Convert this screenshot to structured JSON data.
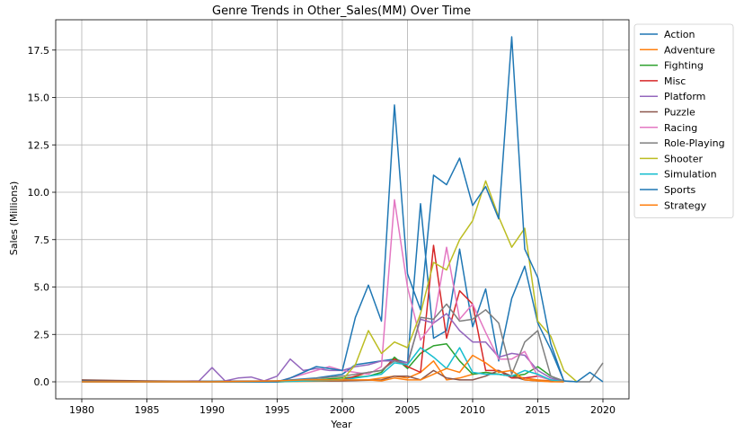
{
  "chart_data": {
    "type": "line",
    "title": "Genre Trends in Other_Sales(MM) Over Time",
    "xlabel": "Year",
    "ylabel": "Sales (Millions)",
    "xlim": [
      1978,
      2022
    ],
    "ylim": [
      -0.9,
      19.1
    ],
    "x_ticks": [
      1980,
      1985,
      1990,
      1995,
      2000,
      2005,
      2010,
      2015,
      2020
    ],
    "y_ticks": [
      0.0,
      2.5,
      5.0,
      7.5,
      10.0,
      12.5,
      15.0,
      17.5
    ],
    "y_tick_labels": [
      "0.0",
      "2.5",
      "5.0",
      "7.5",
      "10.0",
      "12.5",
      "15.0",
      "17.5"
    ],
    "grid": true,
    "legend_position": "outside-right",
    "series": [
      {
        "name": "Action",
        "color": "#1f77b4",
        "x": [
          1980,
          1985,
          1990,
          1995,
          1998,
          2000,
          2001,
          2002,
          2003,
          2004,
          2005,
          2006,
          2007,
          2008,
          2009,
          2010,
          2011,
          2012,
          2013,
          2014,
          2015,
          2016,
          2017
        ],
        "y": [
          0.05,
          0.02,
          0.03,
          0.05,
          0.2,
          0.4,
          0.9,
          1.0,
          1.1,
          1.2,
          1.0,
          9.4,
          2.3,
          2.7,
          7.0,
          2.9,
          4.9,
          1.1,
          4.4,
          6.1,
          3.1,
          1.7,
          0.05
        ]
      },
      {
        "name": "Adventure",
        "color": "#ff7f0e",
        "x": [
          1980,
          1985,
          1990,
          1995,
          2000,
          2002,
          2003,
          2004,
          2005,
          2006,
          2007,
          2008,
          2009,
          2010,
          2011,
          2012,
          2013,
          2014,
          2015,
          2016,
          2017
        ],
        "y": [
          0.0,
          0.0,
          0.0,
          0.0,
          0.05,
          0.1,
          0.2,
          0.3,
          0.2,
          0.5,
          1.1,
          0.1,
          0.2,
          0.4,
          0.5,
          0.4,
          0.3,
          0.2,
          0.1,
          0.05,
          0.0
        ]
      },
      {
        "name": "Fighting",
        "color": "#2ca02c",
        "x": [
          1980,
          1985,
          1990,
          1995,
          1998,
          2000,
          2002,
          2003,
          2004,
          2005,
          2006,
          2007,
          2008,
          2009,
          2010,
          2011,
          2012,
          2013,
          2014,
          2015,
          2016,
          2017
        ],
        "y": [
          0.0,
          0.0,
          0.0,
          0.0,
          0.1,
          0.2,
          0.3,
          0.5,
          1.3,
          0.7,
          1.5,
          1.9,
          2.0,
          1.1,
          0.4,
          0.5,
          0.4,
          0.3,
          0.4,
          0.8,
          0.3,
          0.0
        ]
      },
      {
        "name": "Misc",
        "color": "#d62728",
        "x": [
          1980,
          1985,
          1990,
          1995,
          2000,
          2001,
          2002,
          2003,
          2004,
          2005,
          2006,
          2007,
          2008,
          2009,
          2010,
          2011,
          2012,
          2013,
          2014,
          2015,
          2016,
          2017
        ],
        "y": [
          0.0,
          0.0,
          0.0,
          0.0,
          0.1,
          0.3,
          0.5,
          0.6,
          1.2,
          0.8,
          0.5,
          7.2,
          2.3,
          4.8,
          4.1,
          0.6,
          0.6,
          0.2,
          0.2,
          0.3,
          0.1,
          0.0
        ]
      },
      {
        "name": "Platform",
        "color": "#9467bd",
        "x": [
          1980,
          1985,
          1989,
          1990,
          1991,
          1992,
          1993,
          1994,
          1995,
          1996,
          1997,
          1998,
          1999,
          2000,
          2001,
          2002,
          2003,
          2004,
          2005,
          2006,
          2007,
          2008,
          2009,
          2010,
          2011,
          2012,
          2013,
          2014,
          2015,
          2016,
          2017
        ],
        "y": [
          0.0,
          0.0,
          0.05,
          0.75,
          0.05,
          0.2,
          0.25,
          0.05,
          0.3,
          1.2,
          0.6,
          0.7,
          0.6,
          0.6,
          0.8,
          0.9,
          1.1,
          1.1,
          1.0,
          3.3,
          3.1,
          3.6,
          2.7,
          2.1,
          2.1,
          1.3,
          1.5,
          1.4,
          0.6,
          0.2,
          0.0
        ]
      },
      {
        "name": "Puzzle",
        "color": "#8c564b",
        "x": [
          1980,
          1985,
          1990,
          1995,
          2000,
          2003,
          2004,
          2005,
          2006,
          2007,
          2008,
          2009,
          2010,
          2011,
          2012,
          2013,
          2014,
          2015,
          2016,
          2017
        ],
        "y": [
          0.1,
          0.05,
          0.02,
          0.05,
          0.05,
          0.1,
          0.3,
          0.3,
          0.1,
          0.6,
          0.2,
          0.1,
          0.1,
          0.3,
          0.6,
          0.3,
          0.1,
          0.05,
          0.02,
          0.0
        ]
      },
      {
        "name": "Racing",
        "color": "#e377c2",
        "x": [
          1980,
          1985,
          1990,
          1995,
          1999,
          2000,
          2001,
          2002,
          2003,
          2004,
          2005,
          2006,
          2007,
          2008,
          2009,
          2010,
          2011,
          2012,
          2013,
          2014,
          2015,
          2016,
          2017
        ],
        "y": [
          0.0,
          0.0,
          0.0,
          0.0,
          0.8,
          0.6,
          0.5,
          0.4,
          0.8,
          9.6,
          5.0,
          2.2,
          3.1,
          7.1,
          3.3,
          4.1,
          2.6,
          1.2,
          1.2,
          1.6,
          0.3,
          0.1,
          0.0
        ]
      },
      {
        "name": "Role-Playing",
        "color": "#7f7f7f",
        "x": [
          1980,
          1985,
          1990,
          1995,
          2000,
          2003,
          2004,
          2005,
          2006,
          2007,
          2008,
          2009,
          2010,
          2011,
          2012,
          2013,
          2014,
          2015,
          2016,
          2017,
          2018,
          2019,
          2020
        ],
        "y": [
          0.0,
          0.0,
          0.0,
          0.0,
          0.3,
          0.6,
          1.1,
          0.9,
          3.4,
          3.3,
          4.1,
          3.2,
          3.3,
          3.8,
          3.1,
          0.4,
          2.1,
          2.7,
          0.3,
          0.05,
          0.0,
          0.0,
          1.0
        ]
      },
      {
        "name": "Shooter",
        "color": "#bcbd22",
        "x": [
          1980,
          1985,
          1990,
          1995,
          2000,
          2001,
          2002,
          2003,
          2004,
          2005,
          2006,
          2007,
          2008,
          2009,
          2010,
          2011,
          2012,
          2013,
          2014,
          2015,
          2016,
          2017,
          2018
        ],
        "y": [
          0.0,
          0.0,
          0.0,
          0.0,
          0.1,
          0.9,
          2.7,
          1.5,
          2.1,
          1.8,
          3.6,
          6.3,
          5.9,
          7.5,
          8.5,
          10.6,
          8.7,
          7.1,
          8.1,
          3.2,
          2.4,
          0.6,
          0.0
        ]
      },
      {
        "name": "Simulation",
        "color": "#17becf",
        "x": [
          1980,
          1985,
          1990,
          1995,
          2000,
          2002,
          2003,
          2004,
          2005,
          2006,
          2007,
          2008,
          2009,
          2010,
          2011,
          2012,
          2013,
          2014,
          2015,
          2016,
          2017
        ],
        "y": [
          0.0,
          0.0,
          0.0,
          0.0,
          0.1,
          0.3,
          0.4,
          1.0,
          0.9,
          1.8,
          1.3,
          0.7,
          1.8,
          0.5,
          0.4,
          0.4,
          0.3,
          0.6,
          0.4,
          0.1,
          0.0
        ]
      },
      {
        "name": "Sports",
        "color": "#1f77b4",
        "x": [
          1980,
          1985,
          1990,
          1995,
          1996,
          1997,
          1998,
          1999,
          2000,
          2001,
          2002,
          2003,
          2004,
          2005,
          2006,
          2007,
          2008,
          2009,
          2010,
          2011,
          2012,
          2013,
          2014,
          2015,
          2016,
          2017,
          2018,
          2019,
          2020
        ],
        "y": [
          0.0,
          0.0,
          0.0,
          0.0,
          0.2,
          0.5,
          0.8,
          0.7,
          0.6,
          3.4,
          5.1,
          3.2,
          14.6,
          5.7,
          3.8,
          10.9,
          10.4,
          11.8,
          9.3,
          10.3,
          8.6,
          18.2,
          7.0,
          5.5,
          2.0,
          0.05,
          0.0,
          0.5,
          0.0
        ]
      },
      {
        "name": "Strategy",
        "color": "#ff7f0e",
        "x": [
          1980,
          1985,
          1990,
          1995,
          1997,
          2000,
          2002,
          2003,
          2004,
          2005,
          2006,
          2007,
          2008,
          2009,
          2010,
          2011,
          2012,
          2013,
          2014,
          2015,
          2016,
          2017
        ],
        "y": [
          0.0,
          0.0,
          0.0,
          0.05,
          0.1,
          0.1,
          0.1,
          0.05,
          0.2,
          0.1,
          0.1,
          0.4,
          0.7,
          0.5,
          1.4,
          1.0,
          0.5,
          0.6,
          0.1,
          0.05,
          0.0,
          0.0
        ]
      }
    ]
  }
}
